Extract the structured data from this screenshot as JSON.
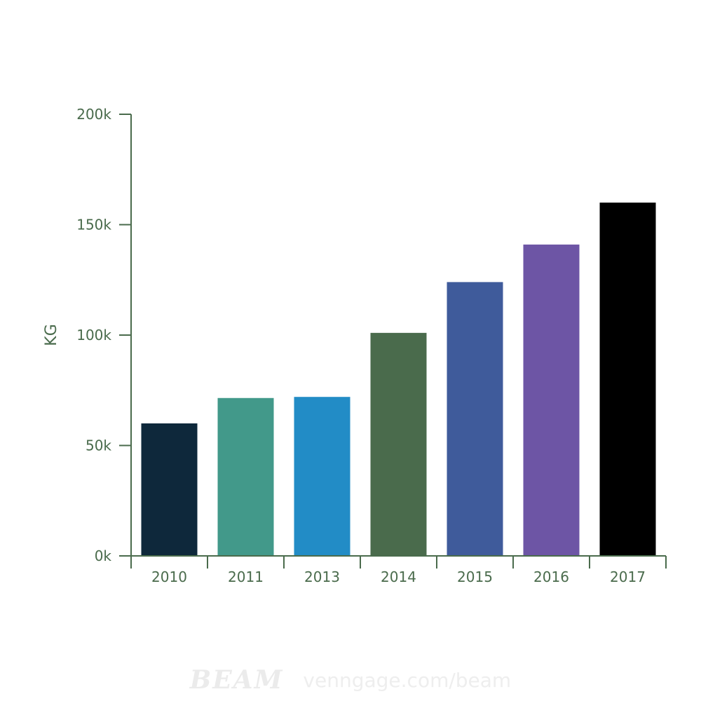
{
  "chart_data": {
    "type": "bar",
    "categories": [
      "2010",
      "2011",
      "2013",
      "2014",
      "2015",
      "2016",
      "2017"
    ],
    "values": [
      60000,
      71500,
      72000,
      101000,
      124000,
      141000,
      160000
    ],
    "colors": [
      "#0e283b",
      "#42998a",
      "#228cc6",
      "#4a6b4c",
      "#3f5b9b",
      "#6d55a5",
      "#000000"
    ],
    "ylabel": "KG",
    "ylim": [
      0,
      200000
    ],
    "yticks": [
      0,
      50000,
      100000,
      150000,
      200000
    ],
    "ytick_labels": [
      "0k",
      "50k",
      "100k",
      "150k",
      "200k"
    ],
    "axis_color": "#4a6b4c",
    "grid": false,
    "legend": "none"
  },
  "watermark": {
    "logo": "BEAM",
    "url": "venngage.com/beam"
  }
}
